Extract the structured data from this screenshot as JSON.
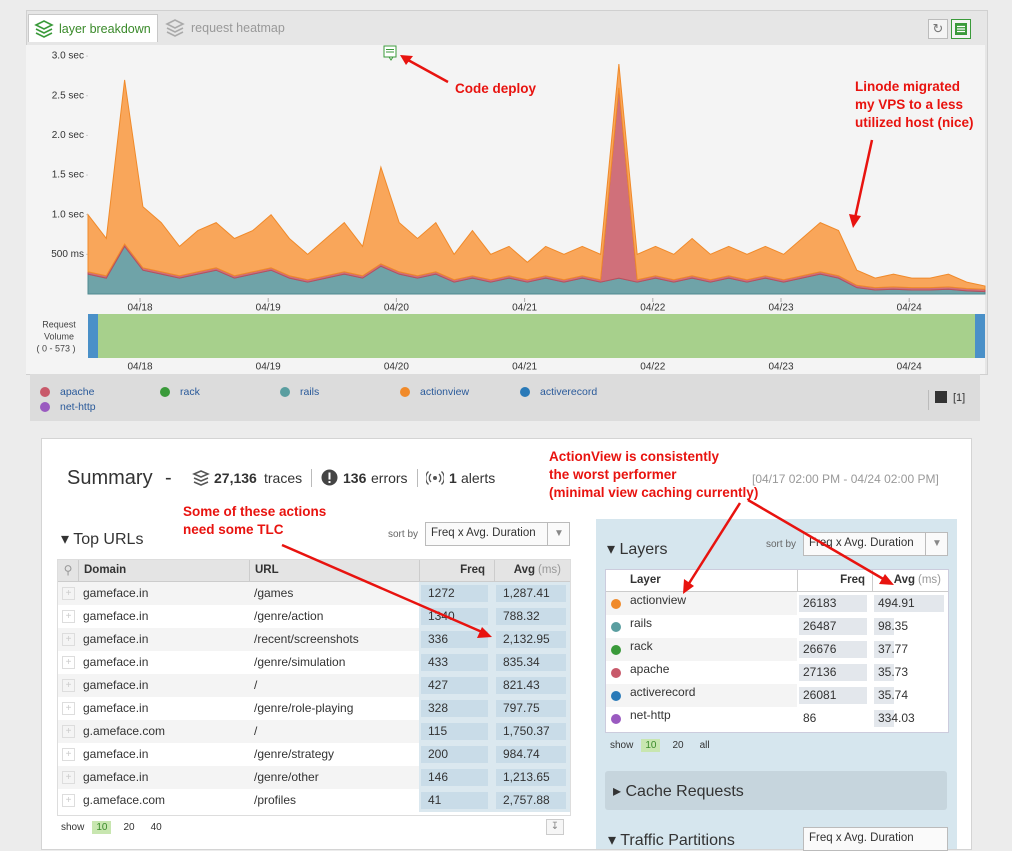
{
  "tabs": [
    "layer breakdown",
    "request heatmap"
  ],
  "chart": {
    "type": "area",
    "ylim": [
      0,
      3.14
    ],
    "yticks": [
      {
        "value": 3.0,
        "label": "3.0 sec"
      },
      {
        "value": 2.5,
        "label": "2.5 sec"
      },
      {
        "value": 2.0,
        "label": "2.0 sec"
      },
      {
        "value": 1.5,
        "label": "1.5 sec"
      },
      {
        "value": 1.0,
        "label": "1.0 sec"
      },
      {
        "value": 0.5,
        "label": "500 ms"
      }
    ],
    "xticks": [
      "04/18",
      "04/19",
      "04/20",
      "04/21",
      "04/22",
      "04/23",
      "04/24"
    ],
    "series": [
      {
        "name": "rails",
        "color": "#6fa3a8",
        "values": [
          0.25,
          0.2,
          0.6,
          0.3,
          0.25,
          0.2,
          0.25,
          0.3,
          0.2,
          0.25,
          0.3,
          0.2,
          0.15,
          0.2,
          0.25,
          0.2,
          0.35,
          0.25,
          0.2,
          0.25,
          0.15,
          0.2,
          0.15,
          0.2,
          0.15,
          0.2,
          0.15,
          0.2,
          0.15,
          0.2,
          0.15,
          0.2,
          0.15,
          0.2,
          0.15,
          0.2,
          0.15,
          0.2,
          0.15,
          0.2,
          0.25,
          0.2,
          0.08,
          0.05,
          0.06,
          0.05,
          0.05,
          0.06,
          0.04,
          0.03
        ]
      },
      {
        "name": "apache",
        "color": "#d0707a",
        "values": [
          0.03,
          0.03,
          0.03,
          0.03,
          0.03,
          0.03,
          0.03,
          0.03,
          0.03,
          0.03,
          0.03,
          0.03,
          0.03,
          0.03,
          0.03,
          0.03,
          0.03,
          0.03,
          0.03,
          0.03,
          0.03,
          0.03,
          0.03,
          0.03,
          0.03,
          0.03,
          0.03,
          0.03,
          0.03,
          2.4,
          0.03,
          0.03,
          0.03,
          0.03,
          0.03,
          0.03,
          0.03,
          0.03,
          0.03,
          0.03,
          0.03,
          0.03,
          0.03,
          0.03,
          0.03,
          0.03,
          0.03,
          0.03,
          0.03,
          0.03
        ]
      },
      {
        "name": "actionview",
        "color": "#f9a65a",
        "values": [
          0.72,
          0.47,
          2.07,
          0.77,
          0.62,
          0.37,
          0.52,
          0.57,
          0.47,
          0.52,
          0.67,
          0.47,
          0.32,
          0.47,
          0.62,
          0.37,
          1.22,
          0.62,
          0.47,
          0.62,
          0.32,
          0.57,
          0.32,
          0.37,
          0.22,
          0.37,
          0.32,
          0.37,
          0.32,
          0.3,
          0.32,
          0.37,
          0.32,
          0.47,
          0.32,
          0.37,
          0.32,
          0.37,
          0.32,
          0.47,
          0.62,
          0.57,
          0.19,
          0.12,
          0.16,
          0.12,
          0.12,
          0.16,
          0.08,
          0.04
        ]
      }
    ],
    "volume_label": [
      "Request",
      "Volume"
    ],
    "volume_range": "( 0 - 573 )"
  },
  "annotations": {
    "deploy": [
      "Code deploy"
    ],
    "linode": [
      "Linode migrated",
      "my VPS to a less",
      "utilized host (nice)"
    ],
    "actionview": [
      "ActionView is consistently",
      "the worst performer",
      "(minimal view caching currently)"
    ],
    "tlc": [
      "Some of these actions",
      "need some TLC"
    ]
  },
  "legend": [
    {
      "name": "apache",
      "color": "#c8596a"
    },
    {
      "name": "rack",
      "color": "#3a9a3a"
    },
    {
      "name": "rails",
      "color": "#5a9ea0"
    },
    {
      "name": "actionview",
      "color": "#f08a2a"
    },
    {
      "name": "activerecord",
      "color": "#2a7ab8"
    },
    {
      "name": "net-http",
      "color": "#9a5ac0"
    }
  ],
  "legend_count": "[1]",
  "summary": {
    "title": "Summary",
    "dash": "-",
    "traces": "27,136",
    "traces_label": "traces",
    "errors": "136",
    "errors_label": "errors",
    "alerts": "1",
    "alerts_label": "alerts",
    "range": "[04/17 02:00 PM - 04/24 02:00 PM]"
  },
  "top_urls": {
    "title": "Top URLs",
    "sort_label": "sort by",
    "sort_value": "Freq x Avg. Duration",
    "columns": [
      "Domain",
      "URL",
      "Freq",
      "Avg"
    ],
    "unit": "(ms)",
    "rows": [
      [
        "gameface.in",
        "/games",
        "1272",
        "1,287.41"
      ],
      [
        "gameface.in",
        "/genre/action",
        "1340",
        "788.32"
      ],
      [
        "gameface.in",
        "/recent/screenshots",
        "336",
        "2,132.95"
      ],
      [
        "gameface.in",
        "/genre/simulation",
        "433",
        "835.34"
      ],
      [
        "gameface.in",
        "/",
        "427",
        "821.43"
      ],
      [
        "gameface.in",
        "/genre/role-playing",
        "328",
        "797.75"
      ],
      [
        "g.ameface.com",
        "/",
        "115",
        "1,750.37"
      ],
      [
        "gameface.in",
        "/genre/strategy",
        "200",
        "984.74"
      ],
      [
        "gameface.in",
        "/genre/other",
        "146",
        "1,213.65"
      ],
      [
        "g.ameface.com",
        "/profiles",
        "41",
        "2,757.88"
      ]
    ],
    "show_label": "show",
    "show_options": [
      "10",
      "20",
      "40"
    ]
  },
  "layers": {
    "title": "Layers",
    "sort_label": "sort by",
    "sort_value": "Freq x Avg. Duration",
    "columns": [
      "Layer",
      "Freq",
      "Avg"
    ],
    "unit": "(ms)",
    "rows": [
      {
        "name": "actionview",
        "color": "#f08a2a",
        "freq": "26183",
        "avg": "494.91"
      },
      {
        "name": "rails",
        "color": "#5a9ea0",
        "freq": "26487",
        "avg": "98.35"
      },
      {
        "name": "rack",
        "color": "#3a9a3a",
        "freq": "26676",
        "avg": "37.77"
      },
      {
        "name": "apache",
        "color": "#c8596a",
        "freq": "27136",
        "avg": "35.73"
      },
      {
        "name": "activerecord",
        "color": "#2a7ab8",
        "freq": "26081",
        "avg": "35.74"
      },
      {
        "name": "net-http",
        "color": "#9a5ac0",
        "freq": "86",
        "avg": "334.03"
      }
    ],
    "show_label": "show",
    "show_options": [
      "10",
      "20",
      "all"
    ]
  },
  "cache_title": "Cache Requests",
  "traffic_title": "Traffic Partitions",
  "traffic_sort": "Freq x Avg. Duration"
}
